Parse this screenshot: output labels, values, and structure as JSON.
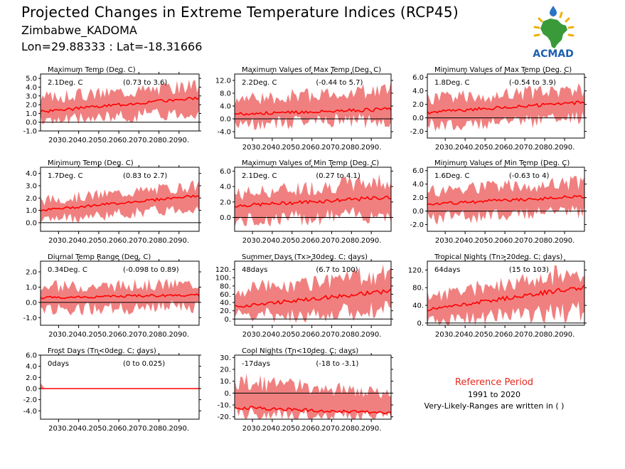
{
  "header": {
    "title": "Projected Changes in Extreme Temperature Indices (RCP45)",
    "location": "Zimbabwe_KADOMA",
    "coords": "Lon=29.88333 : Lat=-18.31666"
  },
  "logo": {
    "text": "ACMAD",
    "colors": {
      "africa": "#3a9a3a",
      "drop": "#2a74c8",
      "sun": "#f0b000",
      "text": "#1e5fb0"
    }
  },
  "reference": {
    "title": "Reference Period",
    "years": "1991 to 2020",
    "note": "Very-Likely-Ranges are written in ( )"
  },
  "colors": {
    "band": "#f08080",
    "line": "#ff0000",
    "axis": "#000000"
  },
  "chart_data": [
    {
      "type": "area",
      "title": "Maximum Temp (Deg. C)",
      "value": "2.1Deg. C",
      "range": "(0.73 to 3.6)",
      "x_range": [
        2021,
        2100
      ],
      "xticks": [
        "2030.",
        "2040.",
        "2050.",
        "2060.",
        "2070.",
        "2080.",
        "2090."
      ],
      "ylim": [
        -1.0,
        5.5
      ],
      "yticks": [
        "-1.0",
        "0.0",
        "1.0",
        "2.0",
        "3.0",
        "4.0",
        "5.0"
      ],
      "series": {
        "median_start": 1.2,
        "median_end": 2.8,
        "low_start": 0.1,
        "low_end": 1.2,
        "high_start": 2.8,
        "high_end": 4.2
      }
    },
    {
      "type": "area",
      "title": "Maximum Values of Max Temp (Deg. C)",
      "value": "2.2Deg. C",
      "range": "(-0.44 to 5.7)",
      "x_range": [
        2021,
        2100
      ],
      "xticks": [
        "2030.",
        "2040.",
        "2050.",
        "2060.",
        "2070.",
        "2080.",
        "2090."
      ],
      "ylim": [
        -6.0,
        14.0
      ],
      "yticks": [
        "-4.0",
        "0.0",
        "4.0",
        "8.0",
        "12.0"
      ],
      "series": {
        "median_start": 1.5,
        "median_end": 3.0,
        "low_start": -1.5,
        "low_end": -0.5,
        "high_start": 6.0,
        "high_end": 9.0
      }
    },
    {
      "type": "area",
      "title": "Minimum Values of Max Temp (Deg. C)",
      "value": "1.8Deg. C",
      "range": "(-0.54 to 3.9)",
      "x_range": [
        2021,
        2100
      ],
      "xticks": [
        "2030.",
        "2040.",
        "2050.",
        "2060.",
        "2070.",
        "2080.",
        "2090."
      ],
      "ylim": [
        -3.0,
        6.5
      ],
      "yticks": [
        "-2.0",
        "0.0",
        "2.0",
        "4.0",
        "6.0"
      ],
      "series": {
        "median_start": 0.8,
        "median_end": 2.3,
        "low_start": -1.2,
        "low_end": 0.0,
        "high_start": 2.8,
        "high_end": 4.2
      }
    },
    {
      "type": "area",
      "title": "Minimum Temp (Deg. C)",
      "value": "1.7Deg. C",
      "range": "(0.83 to 2.7)",
      "x_range": [
        2021,
        2100
      ],
      "xticks": [
        "2030.",
        "2040.",
        "2050.",
        "2060.",
        "2070.",
        "2080.",
        "2090."
      ],
      "ylim": [
        -0.7,
        4.5
      ],
      "yticks": [
        "0.0",
        "1.0",
        "2.0",
        "3.0",
        "4.0"
      ],
      "series": {
        "median_start": 1.0,
        "median_end": 2.2,
        "low_start": 0.2,
        "low_end": 1.2,
        "high_start": 1.8,
        "high_end": 3.0
      }
    },
    {
      "type": "area",
      "title": "Maximum Values of Min Temp (Deg. C)",
      "value": "2.1Deg. C",
      "range": "(0.27 to 4.1)",
      "x_range": [
        2021,
        2100
      ],
      "xticks": [
        "2030.",
        "2040.",
        "2050.",
        "2060.",
        "2070.",
        "2080.",
        "2090."
      ],
      "ylim": [
        -1.8,
        6.5
      ],
      "yticks": [
        "0.0",
        "2.0",
        "4.0",
        "6.0"
      ],
      "series": {
        "median_start": 1.5,
        "median_end": 2.6,
        "low_start": -0.5,
        "low_end": 0.5,
        "high_start": 3.0,
        "high_end": 4.8
      }
    },
    {
      "type": "area",
      "title": "Minimum Values of Min Temp (Deg. C)",
      "value": "1.6Deg. C",
      "range": "(-0.63 to 4)",
      "x_range": [
        2021,
        2100
      ],
      "xticks": [
        "2030.",
        "2040.",
        "2050.",
        "2060.",
        "2070.",
        "2080.",
        "2090."
      ],
      "ylim": [
        -3.0,
        6.5
      ],
      "yticks": [
        "-2.0",
        "0.0",
        "2.0",
        "4.0",
        "6.0"
      ],
      "series": {
        "median_start": 1.0,
        "median_end": 2.2,
        "low_start": -1.0,
        "low_end": 0.0,
        "high_start": 3.0,
        "high_end": 4.2
      }
    },
    {
      "type": "area",
      "title": "Diurnal Temp Range (Deg. C)",
      "value": "0.34Deg. C",
      "range": "(-0.098 to 0.89)",
      "x_range": [
        2021,
        2100
      ],
      "xticks": [
        "2030.",
        "2040.",
        "2050.",
        "2060.",
        "2070.",
        "2080.",
        "2090."
      ],
      "ylim": [
        -1.5,
        2.7
      ],
      "yticks": [
        "-1.0",
        "0.0",
        "1.0",
        "2.0"
      ],
      "series": {
        "median_start": 0.3,
        "median_end": 0.5,
        "low_start": -0.5,
        "low_end": -0.3,
        "high_start": 1.0,
        "high_end": 1.2
      }
    },
    {
      "type": "area",
      "title": "Summer Days (Tx>30deg. C; days)",
      "value": "48days",
      "range": "(6.7 to 100)",
      "x_range": [
        2021,
        2100
      ],
      "xticks": [
        "2030.",
        "2040.",
        "2050.",
        "2060.",
        "2070.",
        "2080.",
        "2090."
      ],
      "ylim": [
        -15,
        140
      ],
      "yticks": [
        "0.",
        "20.",
        "40.",
        "60.",
        "80.",
        "100.",
        "120."
      ],
      "series": {
        "median_start": 30,
        "median_end": 68,
        "low_start": 5,
        "low_end": 20,
        "high_start": 70,
        "high_end": 110
      }
    },
    {
      "type": "area",
      "title": "Tropical Nights (Tn>20deg. C; days)",
      "value": "64days",
      "range": "(15 to 103)",
      "x_range": [
        2021,
        2100
      ],
      "xticks": [
        "2030.",
        "2040.",
        "2050.",
        "2060.",
        "2070.",
        "2080.",
        "2090."
      ],
      "ylim": [
        -5,
        140
      ],
      "yticks": [
        "0.",
        "40.",
        "80.",
        "120."
      ],
      "series": {
        "median_start": 30,
        "median_end": 82,
        "low_start": 5,
        "low_end": 25,
        "high_start": 60,
        "high_end": 120
      }
    },
    {
      "type": "area",
      "title": "Frost Days (Tn<0deg. C; days)",
      "value": "0days",
      "range": "(0 to 0.025)",
      "x_range": [
        2021,
        2100
      ],
      "xticks": [
        "2030.",
        "2040.",
        "2050.",
        "2060.",
        "2070.",
        "2080.",
        "2090."
      ],
      "ylim": [
        -5.5,
        6.0
      ],
      "yticks": [
        "-4.0",
        "-2.0",
        "0.0",
        "2.0",
        "4.0",
        "6.0"
      ],
      "series": {
        "median_start": 0.0,
        "median_end": 0.0,
        "low_start": 0.0,
        "low_end": 0.0,
        "high_start": 0.0,
        "high_end": 0.0
      }
    },
    {
      "type": "area",
      "title": "Cool Nights (Tn<10deg. C; days)",
      "value": "-17days",
      "range": "(-18 to -3.1)",
      "x_range": [
        2021,
        2100
      ],
      "xticks": [
        "2030.",
        "2040.",
        "2050.",
        "2060.",
        "2070.",
        "2080.",
        "2090."
      ],
      "ylim": [
        -22,
        32
      ],
      "yticks": [
        "-20.",
        "-10.",
        "0.",
        "10.",
        "20.",
        "30."
      ],
      "series": {
        "median_start": -12,
        "median_end": -17,
        "low_start": -18,
        "low_end": -18,
        "high_start": 10,
        "high_end": 0
      }
    }
  ]
}
